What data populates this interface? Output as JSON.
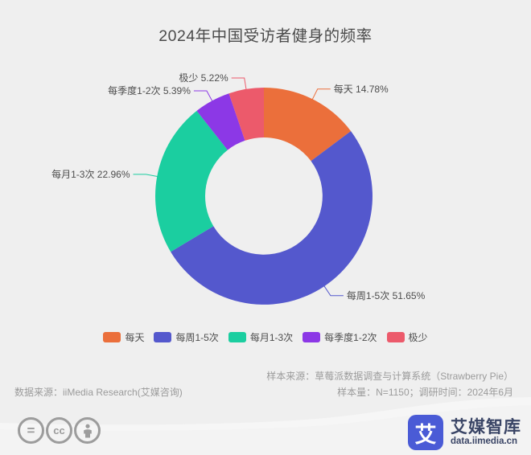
{
  "title": "2024年中国受访者健身的频率",
  "chart_data": {
    "type": "pie",
    "subtype": "donut",
    "title": "2024年中国受访者健身的频率",
    "unit": "%",
    "label_format": "{name} {value}%",
    "start_angle_deg": 0,
    "inner_radius_ratio": 0.54,
    "legend_position": "bottom",
    "segments": [
      {
        "label": "每天",
        "value": 14.78,
        "color": "#eb6f3b"
      },
      {
        "label": "每周1-5次",
        "value": 51.65,
        "color": "#5458cd"
      },
      {
        "label": "每月1-3次",
        "value": 22.96,
        "color": "#1bcea0"
      },
      {
        "label": "每季度1-2次",
        "value": 5.39,
        "color": "#8c38e6"
      },
      {
        "label": "极少",
        "value": 5.22,
        "color": "#ec5a6b"
      }
    ]
  },
  "footer": {
    "source_left": "数据来源：iiMedia Research(艾媒咨询)",
    "sample_source": "样本来源：草莓派数据调查与计算系统（Strawberry Pie）",
    "sample_info": "样本量：N=1150；调研时间：2024年6月"
  },
  "branding": {
    "logo_glyph": "艾",
    "logo_text": "艾媒智库",
    "logo_url_text": "data.iimedia.cn",
    "brand_color": "#4a5bd6",
    "brand_text_color": "#3a4566"
  },
  "license": {
    "badge_equals": "=",
    "badge_cc": "cc"
  },
  "colors": {
    "background": "#efefef",
    "title_text": "#4a4a4a",
    "label_text": "#4d4d4d",
    "footer_text": "#9b9b9b",
    "license_icon": "#9c9c9c"
  }
}
